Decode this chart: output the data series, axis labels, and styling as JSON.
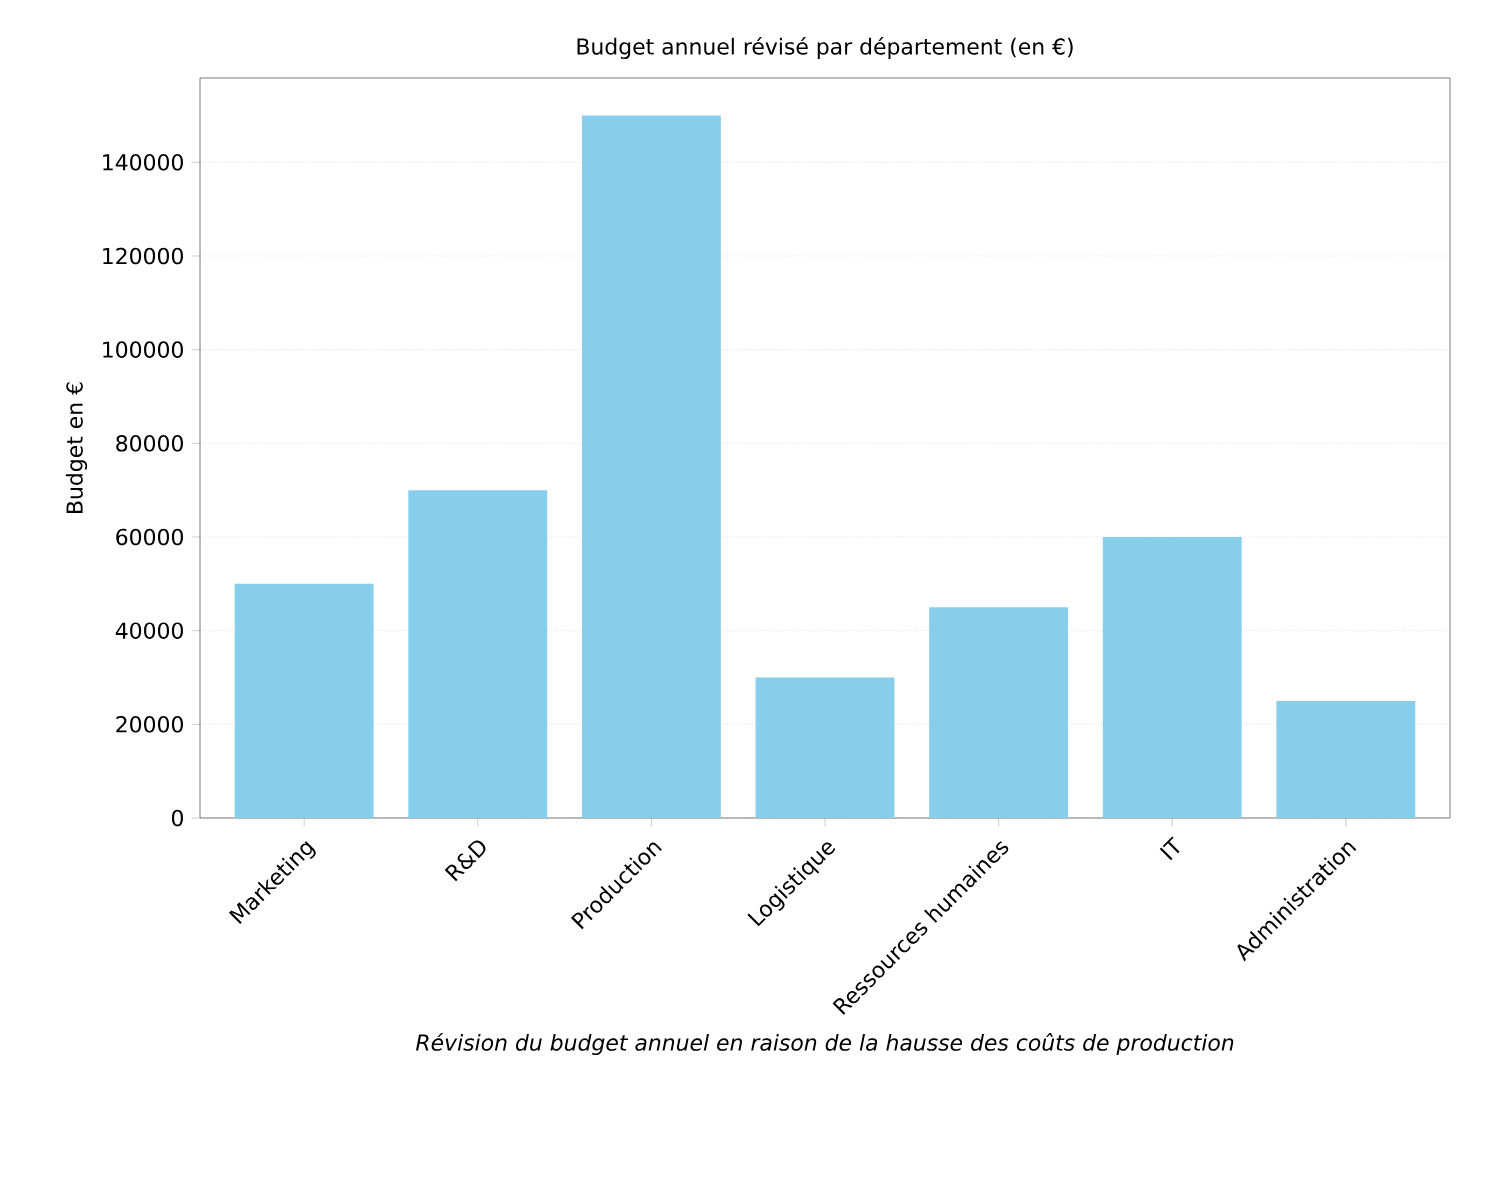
{
  "chart_data": {
    "type": "bar",
    "title": "Budget annuel révisé par département (en €)",
    "ylabel": "Budget en €",
    "xlabel": "Révision du budget annuel en raison de la hausse des coûts de production",
    "categories": [
      "Marketing",
      "R&D",
      "Production",
      "Logistique",
      "Ressources humaines",
      "IT",
      "Administration"
    ],
    "values": [
      50000,
      70000,
      150000,
      30000,
      45000,
      60000,
      25000
    ],
    "color": "#87ceeb",
    "ylim": [
      0,
      158000
    ],
    "yticks": [
      0,
      20000,
      40000,
      60000,
      80000,
      100000,
      120000,
      140000
    ],
    "grid": "y"
  }
}
